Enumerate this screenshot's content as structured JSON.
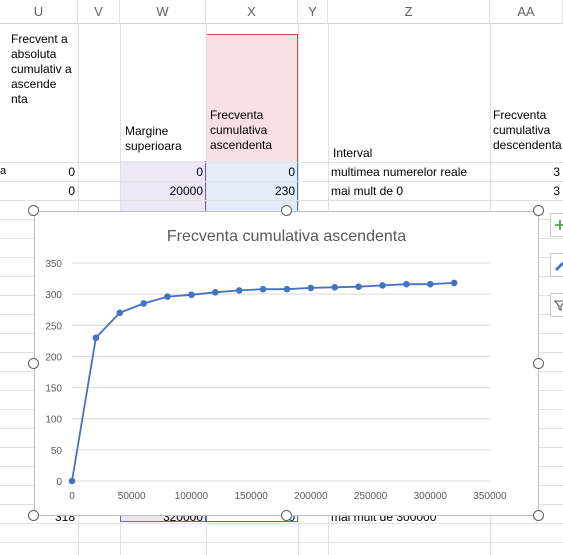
{
  "columns": [
    "U",
    "V",
    "W",
    "X",
    "Y",
    "Z",
    "AA"
  ],
  "headers": {
    "u": "Frecvent a absoluta cumulativ a ascende nta",
    "w": "Margine superioara",
    "x": "Frecventa cumulativa ascendenta",
    "z": "Interval",
    "aa": "Frecventa cumulativa descendenta"
  },
  "rows": [
    {
      "t": "a",
      "u": "0",
      "w": "0",
      "x": "0",
      "z": "multimea numerelor reale",
      "aa": "3"
    },
    {
      "u": "0",
      "w": "20000",
      "x": "230",
      "z": "mai mult de 0",
      "aa": "3"
    }
  ],
  "hidden_row": {
    "u": "318",
    "w": "320000",
    "x": "0",
    "z": "mai mult de 300000"
  },
  "chart_data": {
    "type": "line",
    "title": "Frecventa cumulativa ascendenta",
    "x": [
      0,
      20000,
      40000,
      60000,
      80000,
      100000,
      120000,
      140000,
      160000,
      180000,
      200000,
      220000,
      240000,
      260000,
      280000,
      300000,
      320000
    ],
    "series": [
      {
        "values": [
          0,
          230,
          270,
          285,
          296,
          299,
          303,
          306,
          308,
          308,
          310,
          311,
          312,
          314,
          316,
          316,
          318
        ]
      }
    ],
    "xlim": [
      0,
      350000
    ],
    "ylim": [
      0,
      350
    ],
    "xticks": [
      "0",
      "50000",
      "100000",
      "150000",
      "200000",
      "250000",
      "300000",
      "350000"
    ],
    "yticks": [
      "0",
      "50",
      "100",
      "150",
      "200",
      "250",
      "300",
      "350"
    ],
    "grid": true,
    "line_color": "#4472c4"
  },
  "side_buttons": {
    "add": "plus-icon",
    "style": "brush-icon",
    "filter": "filter-icon"
  }
}
